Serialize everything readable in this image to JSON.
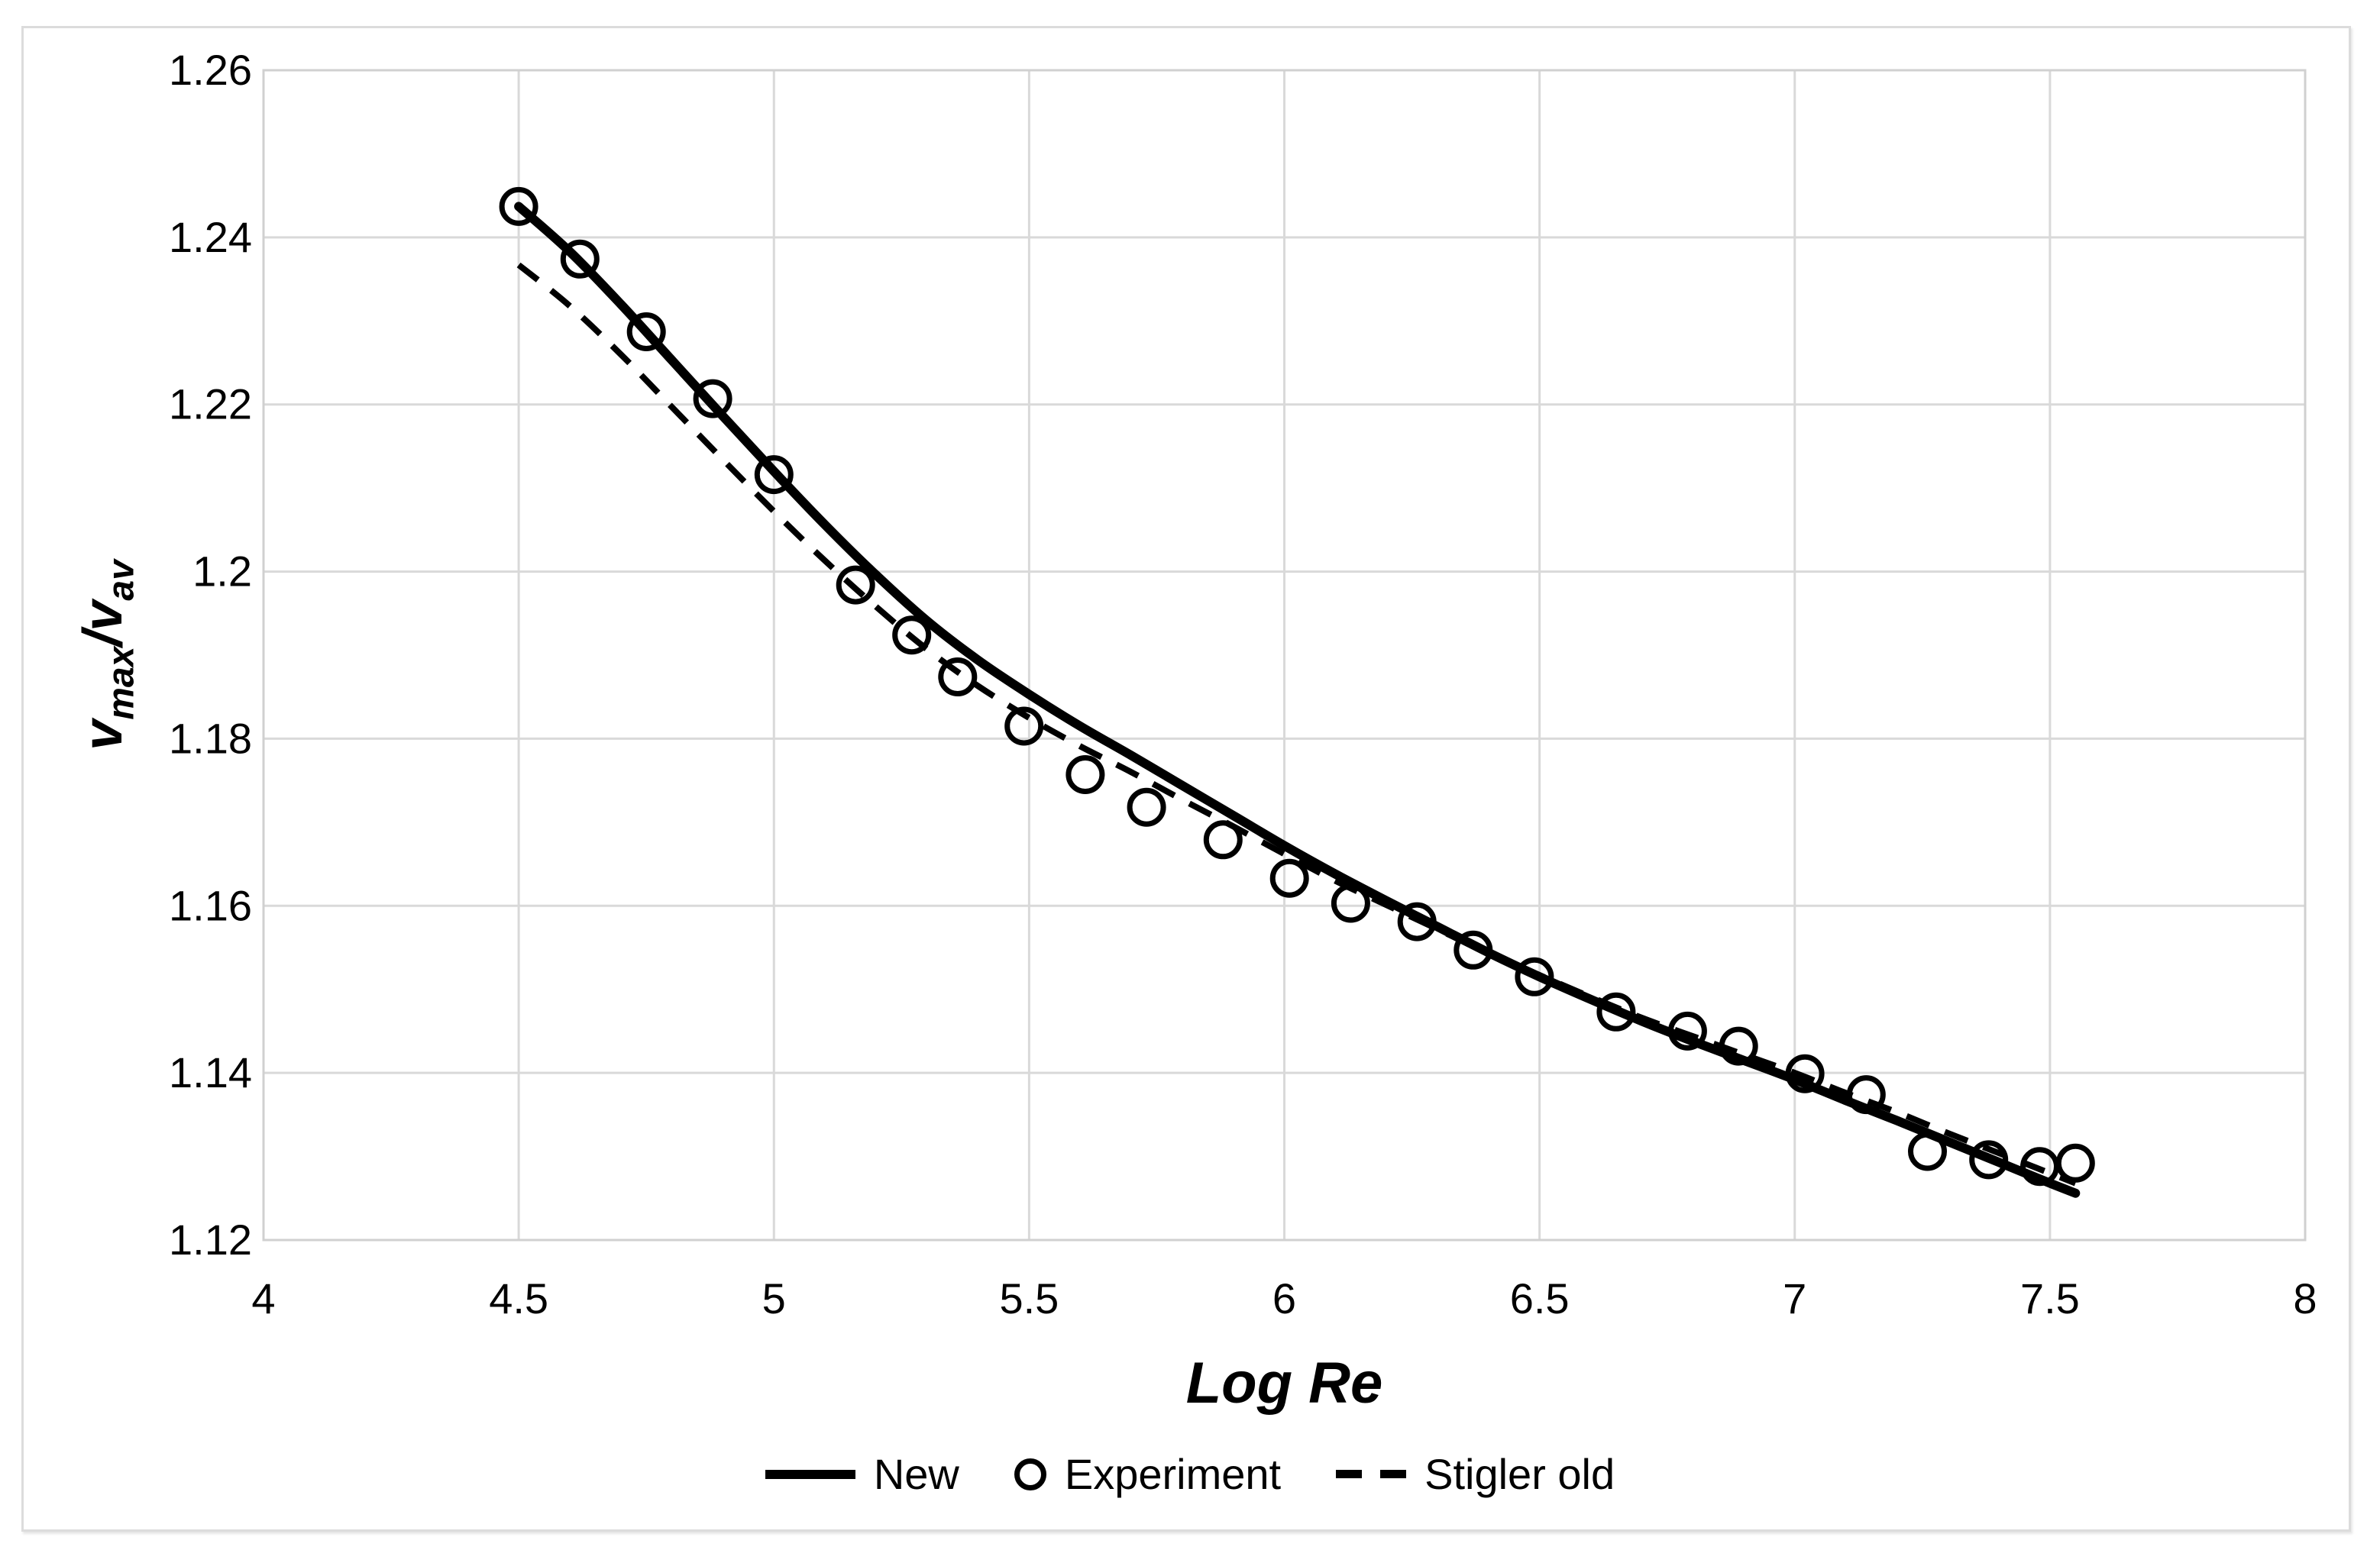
{
  "chart_data": {
    "type": "line",
    "title": "",
    "xlabel": "Log Re",
    "ylabel": "v_max/v_av",
    "xlim": [
      4,
      8
    ],
    "ylim": [
      1.12,
      1.26
    ],
    "grid": true,
    "legend_position": "bottom",
    "x_ticks": [
      {
        "label": "4",
        "v": 4
      },
      {
        "label": "4.5",
        "v": 4.5
      },
      {
        "label": "5",
        "v": 5
      },
      {
        "label": "5.5",
        "v": 5.5
      },
      {
        "label": "6",
        "v": 6
      },
      {
        "label": "6.5",
        "v": 6.5
      },
      {
        "label": "7",
        "v": 7
      },
      {
        "label": "7.5",
        "v": 7.5
      },
      {
        "label": "8",
        "v": 8
      }
    ],
    "y_ticks": [
      {
        "label": "1.12",
        "v": 1.12
      },
      {
        "label": "1.14",
        "v": 1.14
      },
      {
        "label": "1.16",
        "v": 1.16
      },
      {
        "label": "1.18",
        "v": 1.18
      },
      {
        "label": "1.2",
        "v": 1.2
      },
      {
        "label": "1.22",
        "v": 1.22
      },
      {
        "label": "1.24",
        "v": 1.24
      },
      {
        "label": "1.26",
        "v": 1.26
      }
    ],
    "series": [
      {
        "name": "New",
        "type": "line",
        "style": "solid",
        "points": [
          [
            4.5,
            1.2437
          ],
          [
            4.6,
            1.2383
          ],
          [
            4.7,
            1.232
          ],
          [
            4.8,
            1.2253
          ],
          [
            4.9,
            1.2186
          ],
          [
            5.0,
            1.212
          ],
          [
            5.1,
            1.2056
          ],
          [
            5.2,
            1.1996
          ],
          [
            5.3,
            1.1941
          ],
          [
            5.4,
            1.1894
          ],
          [
            5.5,
            1.1853
          ],
          [
            5.6,
            1.1815
          ],
          [
            5.7,
            1.178
          ],
          [
            5.8,
            1.1744
          ],
          [
            5.9,
            1.1708
          ],
          [
            6.0,
            1.1672
          ],
          [
            6.1,
            1.1638
          ],
          [
            6.2,
            1.1606
          ],
          [
            6.3,
            1.1575
          ],
          [
            6.4,
            1.1544
          ],
          [
            6.5,
            1.1515
          ],
          [
            6.6,
            1.1488
          ],
          [
            6.7,
            1.1462
          ],
          [
            6.8,
            1.1438
          ],
          [
            6.9,
            1.1415
          ],
          [
            7.0,
            1.1392
          ],
          [
            7.1,
            1.1367
          ],
          [
            7.2,
            1.1343
          ],
          [
            7.3,
            1.1318
          ],
          [
            7.4,
            1.1293
          ],
          [
            7.5,
            1.1268
          ],
          [
            7.55,
            1.1256
          ]
        ]
      },
      {
        "name": "Experiment",
        "type": "scatter",
        "marker": "circle",
        "points": [
          [
            4.5,
            1.2437
          ],
          [
            4.62,
            1.2374
          ],
          [
            4.75,
            1.2287
          ],
          [
            4.88,
            1.2207
          ],
          [
            5.0,
            1.2116
          ],
          [
            5.16,
            1.1984
          ],
          [
            5.27,
            1.1924
          ],
          [
            5.36,
            1.1874
          ],
          [
            5.49,
            1.1815
          ],
          [
            5.61,
            1.1757
          ],
          [
            5.73,
            1.1718
          ],
          [
            5.88,
            1.1679
          ],
          [
            6.01,
            1.1633
          ],
          [
            6.13,
            1.1603
          ],
          [
            6.26,
            1.1581
          ],
          [
            6.37,
            1.1547
          ],
          [
            6.49,
            1.1515
          ],
          [
            6.65,
            1.1473
          ],
          [
            6.79,
            1.145
          ],
          [
            6.89,
            1.1432
          ],
          [
            7.02,
            1.1399
          ],
          [
            7.14,
            1.1374
          ],
          [
            7.26,
            1.1306
          ],
          [
            7.38,
            1.1296
          ],
          [
            7.48,
            1.1288
          ],
          [
            7.55,
            1.1292
          ]
        ]
      },
      {
        "name": "Stigler old",
        "type": "line",
        "style": "dashed",
        "points": [
          [
            4.5,
            1.2367
          ],
          [
            4.6,
            1.2318
          ],
          [
            4.7,
            1.226
          ],
          [
            4.8,
            1.2197
          ],
          [
            4.9,
            1.2134
          ],
          [
            5.0,
            1.2072
          ],
          [
            5.1,
            1.2013
          ],
          [
            5.2,
            1.1958
          ],
          [
            5.3,
            1.1907
          ],
          [
            5.4,
            1.1863
          ],
          [
            5.5,
            1.1825
          ],
          [
            5.6,
            1.1791
          ],
          [
            5.7,
            1.176
          ],
          [
            5.8,
            1.1727
          ],
          [
            5.9,
            1.1695
          ],
          [
            6.0,
            1.1662
          ],
          [
            6.1,
            1.163
          ],
          [
            6.2,
            1.1601
          ],
          [
            6.3,
            1.1572
          ],
          [
            6.4,
            1.1543
          ],
          [
            6.5,
            1.1517
          ],
          [
            6.6,
            1.1491
          ],
          [
            6.7,
            1.1466
          ],
          [
            6.8,
            1.1444
          ],
          [
            6.9,
            1.1422
          ],
          [
            7.0,
            1.14
          ],
          [
            7.1,
            1.1376
          ],
          [
            7.2,
            1.1353
          ],
          [
            7.3,
            1.1328
          ],
          [
            7.4,
            1.1304
          ],
          [
            7.5,
            1.128
          ],
          [
            7.55,
            1.1268
          ]
        ]
      }
    ]
  },
  "axes": {
    "x_title": "Log Re",
    "y_title": {
      "v1": "v",
      "sub1": "max",
      "slash": "/",
      "v2": "v",
      "sub2": "av"
    }
  },
  "legend": {
    "items": [
      {
        "label": "New",
        "swatch": "solid-line"
      },
      {
        "label": "Experiment",
        "swatch": "circle"
      },
      {
        "label": "Stigler old",
        "swatch": "dashed-line"
      }
    ]
  },
  "colors": {
    "series": "#000000",
    "gridline": "#d9d9d9",
    "plot_border": "#d0d0d0",
    "frame_border": "#dcdcdc",
    "text": "#000000"
  }
}
